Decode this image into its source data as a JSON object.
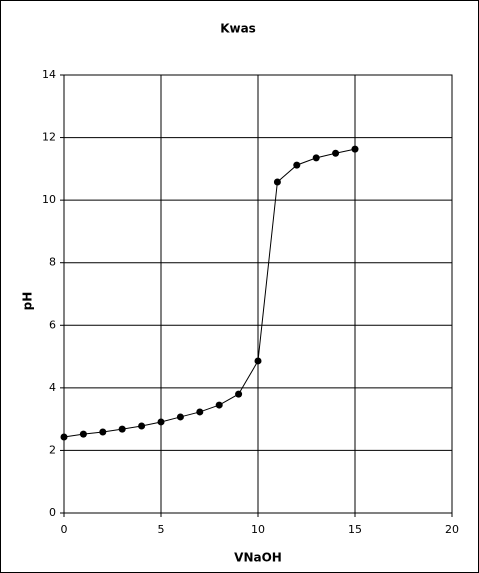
{
  "chart_data": {
    "type": "line",
    "title": "Kwas",
    "x_label": "VNaOH",
    "y_label": "pH",
    "x": [
      0,
      1,
      2,
      3,
      4,
      5,
      6,
      7,
      8,
      9,
      10,
      11,
      12,
      13,
      14,
      15
    ],
    "series": [
      {
        "name": "pH",
        "color": "#000000",
        "values": [
          2.43,
          2.52,
          2.59,
          2.68,
          2.78,
          2.91,
          3.07,
          3.23,
          3.45,
          3.8,
          4.86,
          10.58,
          11.12,
          11.35,
          11.5,
          11.63
        ]
      }
    ],
    "xlim": [
      0,
      20
    ],
    "xticks": [
      0,
      5,
      10,
      15,
      20
    ],
    "ylim": [
      0,
      14
    ],
    "yticks": [
      0,
      2,
      4,
      6,
      8,
      10,
      12,
      14
    ],
    "grid": true
  }
}
